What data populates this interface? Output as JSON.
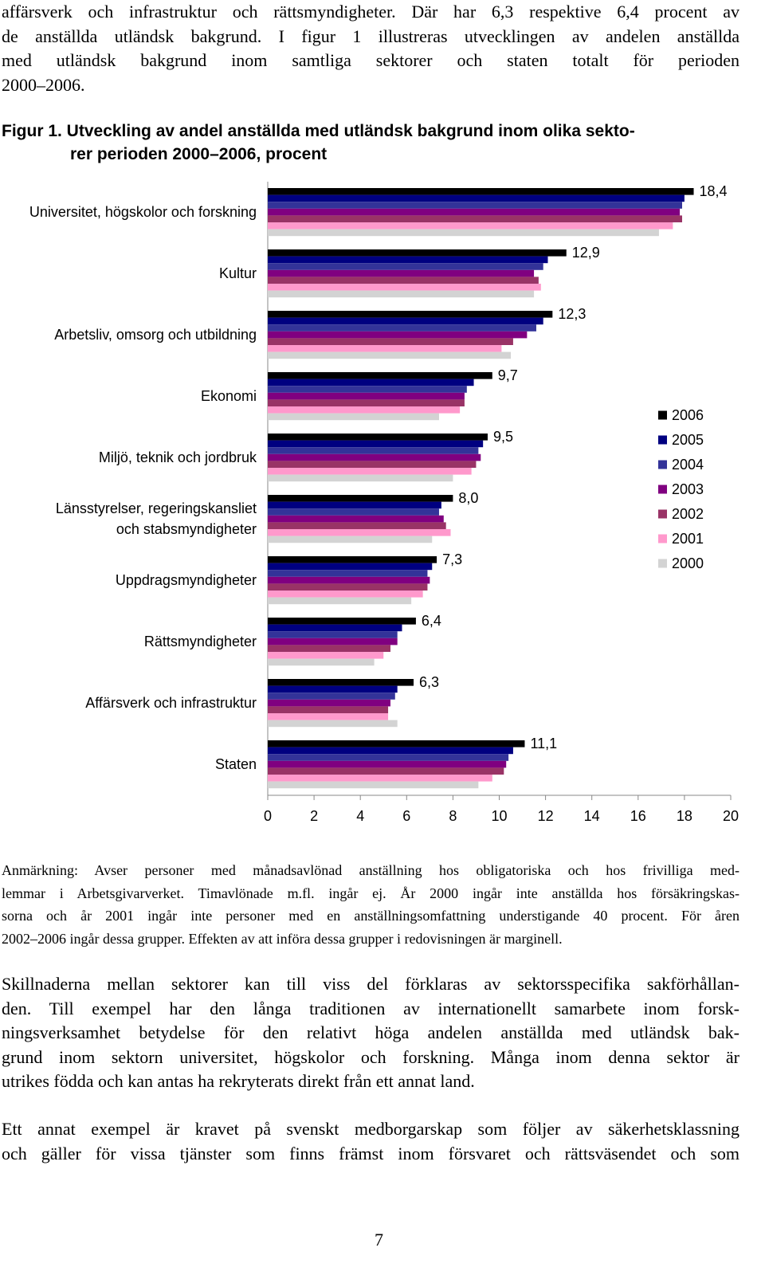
{
  "intro": {
    "lines": [
      "affärsverk och infrastruktur och rättsmyndigheter. Där har 6,3 respektive 6,4 procent av",
      "de anställda utländsk bakgrund. I figur 1 illustreras utvecklingen av andelen anställda",
      "med utländsk bakgrund inom samtliga sektorer och staten totalt för perioden",
      "2000–2006."
    ]
  },
  "figure_title": {
    "lines": [
      "Figur 1. Utveckling av andel anställda med utländsk bakgrund inom olika sekto-",
      "rer perioden 2000–2006, procent"
    ]
  },
  "chart_data": {
    "type": "hbar",
    "categories": [
      "Universitet, högskolor och forskning",
      "Kultur",
      "Arbetsliv, omsorg och utbildning",
      "Ekonomi",
      "Miljö, teknik och jordbruk",
      "Länsstyrelser, regeringskansliet\noch stabsmyndigheter",
      "Uppdragsmyndigheter",
      "Rättsmyndigheter",
      "Affärsverk och infrastruktur",
      "Staten"
    ],
    "series": [
      {
        "name": "2006",
        "color": "#000000",
        "values": [
          18.4,
          12.9,
          12.3,
          9.7,
          9.5,
          8.0,
          7.3,
          6.4,
          6.3,
          11.1
        ],
        "value_labels": [
          "18,4",
          "12,9",
          "12,3",
          "9,7",
          "9,5",
          "8,0",
          "7,3",
          "6,4",
          "6,3",
          "11,1"
        ]
      },
      {
        "name": "2005",
        "color": "#000080",
        "values": [
          18.0,
          12.1,
          11.9,
          8.9,
          9.3,
          7.5,
          7.1,
          5.8,
          5.6,
          10.6
        ]
      },
      {
        "name": "2004",
        "color": "#333399",
        "values": [
          17.9,
          11.9,
          11.6,
          8.6,
          9.1,
          7.4,
          6.9,
          5.6,
          5.5,
          10.4
        ]
      },
      {
        "name": "2003",
        "color": "#800080",
        "values": [
          17.8,
          11.5,
          11.2,
          8.5,
          9.2,
          7.6,
          7.0,
          5.6,
          5.3,
          10.3
        ]
      },
      {
        "name": "2002",
        "color": "#993366",
        "values": [
          17.9,
          11.7,
          10.6,
          8.5,
          9.0,
          7.7,
          6.9,
          5.3,
          5.2,
          10.2
        ]
      },
      {
        "name": "2001",
        "color": "#ff99cc",
        "values": [
          17.5,
          11.8,
          10.1,
          8.3,
          8.8,
          7.9,
          6.7,
          5.0,
          5.2,
          9.7
        ]
      },
      {
        "name": "2000",
        "color": "#d3d3d3",
        "values": [
          16.9,
          11.5,
          10.5,
          7.4,
          8.0,
          7.1,
          6.2,
          4.6,
          5.6,
          9.1
        ]
      }
    ],
    "xlim": [
      0,
      20
    ],
    "xticks": [
      0,
      2,
      4,
      6,
      8,
      10,
      12,
      14,
      16,
      18,
      20
    ],
    "legend": "right",
    "grid": false
  },
  "note": {
    "lines": [
      "Anmärkning: Avser personer med månadsavlönad anställning hos obligatoriska och hos frivilliga med-",
      "lemmar i Arbetsgivarverket. Timavlönade m.fl. ingår ej. År 2000 ingår inte anställda hos försäkringskas-",
      "sorna och år 2001 ingår inte personer med en anställningsomfattning understigande 40 procent. För åren",
      "2002–2006 ingår dessa grupper. Effekten av att införa dessa grupper i redovisningen är marginell."
    ]
  },
  "body": [
    {
      "lines": [
        "Skillnaderna mellan sektorer kan till viss del förklaras av sektorsspecifika sakförhållan-",
        "den. Till exempel har den långa traditionen av internationellt samarbete inom forsk-",
        "ningsverksamhet betydelse för den relativt höga andelen anställda med utländsk bak-",
        "grund inom sektorn universitet, högskolor och forskning. Många inom denna sektor är",
        "utrikes födda och kan antas ha rekryterats direkt från ett annat land."
      ]
    },
    {
      "lines": [
        "Ett annat exempel är kravet på svenskt medborgarskap som följer av säkerhetsklassning",
        "och gäller för vissa tjänster som finns främst inom försvaret och rättsväsendet och som"
      ]
    }
  ],
  "page_number": "7"
}
